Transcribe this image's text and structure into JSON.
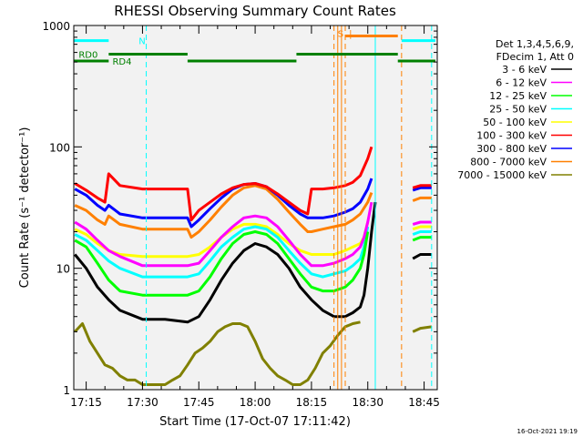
{
  "chart_data": {
    "type": "line",
    "title": "RHESSI Observing Summary Count Rates",
    "xlabel": "Start Time (17-Oct-07 17:11:42)",
    "ylabel": "Count Rate (s⁻¹ detector⁻¹)",
    "yscale": "log",
    "xlim": [
      "17:11:42",
      "18:48:30"
    ],
    "ylim": [
      1,
      1000
    ],
    "x_ticks": [
      "17:15",
      "17:30",
      "17:45",
      "18:00",
      "18:15",
      "18:30",
      "18:45"
    ],
    "y_ticks": [
      "1",
      "10",
      "100",
      "1000"
    ],
    "grid": false,
    "footer": "16-Oct-2021 19:19",
    "legend": {
      "placement": "right",
      "header": [
        "Det 1,3,4,5,6,9,",
        "FDecim 1, Att 0"
      ]
    },
    "series": [
      {
        "name": "3 - 6 keV",
        "color": "#000000",
        "band_low": 3,
        "band_high": 6,
        "x": [
          "17:12",
          "17:15",
          "17:18",
          "17:21",
          "17:24",
          "17:30",
          "17:36",
          "17:42",
          "17:45",
          "17:48",
          "17:51",
          "17:54",
          "17:57",
          "18:00",
          "18:03",
          "18:06",
          "18:09",
          "18:12",
          "18:15",
          "18:18",
          "18:21",
          "18:24",
          "18:26",
          "18:28",
          "18:29",
          "18:30",
          "18:31",
          "18:32",
          "18:40",
          "18:42",
          "18:44",
          "18:47"
        ],
        "y": [
          13,
          10,
          7,
          5.5,
          4.5,
          3.8,
          3.8,
          3.6,
          4,
          5.5,
          8,
          11,
          14,
          16,
          15,
          13,
          10,
          7,
          5.5,
          4.5,
          4,
          4,
          4.3,
          4.8,
          6,
          10,
          20,
          35,
          null,
          12,
          13,
          13
        ]
      },
      {
        "name": "6 - 12 keV",
        "color": "#ff00ff",
        "band_low": 6,
        "band_high": 12,
        "x": [
          "17:12",
          "17:15",
          "17:18",
          "17:21",
          "17:24",
          "17:30",
          "17:36",
          "17:42",
          "17:45",
          "17:48",
          "17:51",
          "17:54",
          "17:57",
          "18:00",
          "18:03",
          "18:06",
          "18:09",
          "18:12",
          "18:15",
          "18:18",
          "18:21",
          "18:24",
          "18:26",
          "18:28",
          "18:29",
          "18:30",
          "18:31",
          "18:32",
          "18:40",
          "18:42",
          "18:44",
          "18:47"
        ],
        "y": [
          24,
          21,
          17,
          14,
          12.5,
          10.5,
          10.5,
          10.5,
          11,
          14,
          18,
          22,
          26,
          27,
          26,
          22,
          17,
          13,
          10.5,
          10.5,
          11,
          12,
          13,
          15,
          18,
          24,
          35,
          null,
          null,
          23,
          24,
          24
        ]
      },
      {
        "name": "12 - 25 keV",
        "color": "#00ff00",
        "band_low": 12,
        "band_high": 25,
        "x": [
          "17:12",
          "17:15",
          "17:18",
          "17:21",
          "17:24",
          "17:30",
          "17:36",
          "17:42",
          "17:45",
          "17:48",
          "17:51",
          "17:54",
          "17:57",
          "18:00",
          "18:03",
          "18:06",
          "18:09",
          "18:12",
          "18:15",
          "18:18",
          "18:21",
          "18:24",
          "18:26",
          "18:28",
          "18:29",
          "18:30",
          "18:31",
          "18:32",
          "18:40",
          "18:42",
          "18:44",
          "18:47"
        ],
        "y": [
          17,
          15,
          11,
          8,
          6.5,
          6,
          6,
          6,
          6.5,
          8.5,
          12,
          16,
          19,
          20,
          19,
          16,
          12,
          9,
          7,
          6.5,
          6.5,
          7,
          8,
          10,
          13,
          20,
          null,
          null,
          null,
          17,
          18,
          18
        ]
      },
      {
        "name": "25 - 50 keV",
        "color": "#00ffff",
        "band_low": 25,
        "band_high": 50,
        "x": [
          "17:12",
          "17:15",
          "17:18",
          "17:21",
          "17:24",
          "17:30",
          "17:36",
          "17:42",
          "17:45",
          "17:48",
          "17:51",
          "17:54",
          "17:57",
          "18:00",
          "18:03",
          "18:06",
          "18:09",
          "18:12",
          "18:15",
          "18:18",
          "18:21",
          "18:24",
          "18:26",
          "18:28",
          "18:29",
          "18:30",
          "18:31",
          "18:32",
          "18:40",
          "18:42",
          "18:44",
          "18:47"
        ],
        "y": [
          19,
          17,
          14,
          11.5,
          10,
          8.5,
          8.5,
          8.5,
          9,
          11.5,
          15,
          18,
          21,
          22,
          21,
          18,
          14,
          11,
          9,
          8.5,
          9,
          9.5,
          10.5,
          12,
          15,
          22,
          null,
          null,
          null,
          19,
          20,
          20
        ]
      },
      {
        "name": "50 - 100 keV",
        "color": "#ffff00",
        "band_low": 50,
        "band_high": 100,
        "x": [
          "17:12",
          "17:15",
          "17:18",
          "17:21",
          "17:24",
          "17:30",
          "17:36",
          "17:42",
          "17:45",
          "17:48",
          "17:51",
          "17:54",
          "17:57",
          "18:00",
          "18:03",
          "18:06",
          "18:09",
          "18:12",
          "18:15",
          "18:18",
          "18:21",
          "18:24",
          "18:26",
          "18:28",
          "18:29",
          "18:30",
          "18:31",
          "18:32",
          "18:40",
          "18:42",
          "18:44",
          "18:47"
        ],
        "y": [
          21,
          19,
          16,
          14,
          13,
          12.5,
          12.5,
          12.5,
          13,
          15,
          18,
          21,
          23,
          23,
          22,
          19,
          16,
          14,
          13,
          13,
          13,
          14,
          15,
          16,
          18,
          24,
          null,
          null,
          null,
          21,
          22,
          22
        ]
      },
      {
        "name": "100 - 300 keV",
        "color": "#ff0000",
        "band_low": 100,
        "band_high": 300,
        "x": [
          "17:12",
          "17:15",
          "17:18",
          "17:20",
          "17:21",
          "17:24",
          "17:30",
          "17:36",
          "17:42",
          "17:43",
          "17:45",
          "17:48",
          "17:51",
          "17:54",
          "17:57",
          "18:00",
          "18:03",
          "18:06",
          "18:09",
          "18:12",
          "18:14",
          "18:15",
          "18:18",
          "18:21",
          "18:24",
          "18:26",
          "18:28",
          "18:30",
          "18:31",
          "18:32",
          "18:40",
          "18:42",
          "18:44",
          "18:47"
        ],
        "y": [
          50,
          44,
          38,
          35,
          60,
          48,
          45,
          45,
          45,
          25,
          30,
          35,
          41,
          46,
          49,
          50,
          47,
          41,
          35,
          30,
          28,
          45,
          45,
          46,
          48,
          51,
          58,
          80,
          100,
          null,
          null,
          46,
          48,
          48
        ]
      },
      {
        "name": "300 - 800 keV",
        "color": "#0000ff",
        "band_low": 300,
        "band_high": 800,
        "x": [
          "17:12",
          "17:15",
          "17:18",
          "17:20",
          "17:21",
          "17:24",
          "17:30",
          "17:36",
          "17:42",
          "17:43",
          "17:45",
          "17:48",
          "17:51",
          "17:54",
          "17:57",
          "18:00",
          "18:03",
          "18:06",
          "18:09",
          "18:12",
          "18:14",
          "18:15",
          "18:18",
          "18:21",
          "18:24",
          "18:26",
          "18:28",
          "18:30",
          "18:31",
          "18:32",
          "18:40",
          "18:42",
          "18:44",
          "18:47"
        ],
        "y": [
          45,
          40,
          33,
          30,
          33,
          28,
          26,
          26,
          26,
          22,
          25,
          31,
          38,
          45,
          49,
          50,
          47,
          40,
          33,
          28,
          26,
          26,
          26,
          27,
          29,
          31,
          35,
          45,
          55,
          null,
          null,
          44,
          46,
          46
        ]
      },
      {
        "name": "800 - 7000 keV",
        "color": "#ff8000",
        "band_low": 800,
        "band_high": 7000,
        "x": [
          "17:12",
          "17:15",
          "17:18",
          "17:20",
          "17:21",
          "17:24",
          "17:30",
          "17:36",
          "17:42",
          "17:43",
          "17:45",
          "17:48",
          "17:51",
          "17:54",
          "17:57",
          "18:00",
          "18:03",
          "18:06",
          "18:09",
          "18:12",
          "18:14",
          "18:15",
          "18:18",
          "18:21",
          "18:24",
          "18:26",
          "18:28",
          "18:30",
          "18:31",
          "18:32",
          "18:40",
          "18:42",
          "18:44",
          "18:47"
        ],
        "y": [
          33,
          30,
          25,
          23,
          27,
          23,
          21,
          21,
          21,
          18,
          20,
          25,
          32,
          40,
          46,
          48,
          45,
          37,
          29,
          23,
          20,
          20,
          21,
          22,
          23,
          25,
          28,
          35,
          42,
          null,
          null,
          36,
          38,
          38
        ]
      },
      {
        "name": "7000 - 15000 keV",
        "color": "#808000",
        "band_low": 7000,
        "band_high": 15000,
        "x": [
          "17:12",
          "17:14",
          "17:16",
          "17:18",
          "17:20",
          "17:22",
          "17:24",
          "17:26",
          "17:28",
          "17:30",
          "17:32",
          "17:34",
          "17:36",
          "17:38",
          "17:40",
          "17:42",
          "17:44",
          "17:46",
          "17:48",
          "17:50",
          "17:52",
          "17:54",
          "17:56",
          "17:58",
          "18:00",
          "18:02",
          "18:04",
          "18:06",
          "18:08",
          "18:10",
          "18:12",
          "18:14",
          "18:16",
          "18:18",
          "18:20",
          "18:22",
          "18:24",
          "18:26",
          "18:28",
          "18:30",
          "18:32",
          "18:40",
          "18:42",
          "18:44",
          "18:47"
        ],
        "y": [
          3,
          3.5,
          2.5,
          2,
          1.6,
          1.5,
          1.3,
          1.2,
          1.2,
          1.1,
          1.1,
          1.1,
          1.1,
          1.2,
          1.3,
          1.6,
          2,
          2.2,
          2.5,
          3,
          3.3,
          3.5,
          3.5,
          3.3,
          2.5,
          1.8,
          1.5,
          1.3,
          1.2,
          1.1,
          1.1,
          1.2,
          1.5,
          2,
          2.3,
          2.8,
          3.3,
          3.5,
          3.6,
          null,
          null,
          null,
          3,
          3.2,
          3.3
        ]
      }
    ],
    "annotations": {
      "labels": [
        {
          "text": "N",
          "color": "#00ffff"
        },
        {
          "text": "RD0",
          "color": "#008000"
        },
        {
          "text": "RD4",
          "color": "#008000"
        },
        {
          "text": "S",
          "color": "#ff8000"
        },
        {
          "text": "|",
          "color": "#ff8000"
        }
      ],
      "flag_bars": [
        {
          "name": "night",
          "color": "#00ffff",
          "value": 750,
          "segments": [
            [
              "17:11:42",
              "17:21"
            ],
            [
              "18:39",
              "18:48"
            ]
          ]
        },
        {
          "name": "saa",
          "color": "#ff8000",
          "value": 820,
          "segments": [
            [
              "18:24",
              "18:38"
            ]
          ]
        },
        {
          "name": "decimation-upper",
          "color": "#008000",
          "value": 580,
          "segments": [
            [
              "17:21",
              "17:42"
            ],
            [
              "18:11",
              "18:38"
            ]
          ]
        },
        {
          "name": "decimation-lower",
          "color": "#008000",
          "value": 510,
          "segments": [
            [
              "17:11:42",
              "17:21"
            ],
            [
              "17:42",
              "18:11"
            ],
            [
              "18:38",
              "18:48"
            ]
          ]
        }
      ],
      "vlines": [
        {
          "t": "17:31",
          "color": "#00ffff",
          "style": "dash"
        },
        {
          "t": "18:21",
          "color": "#ff8000",
          "style": "dash"
        },
        {
          "t": "18:22",
          "color": "#ff8000",
          "style": "solid"
        },
        {
          "t": "18:23",
          "color": "#ff8000",
          "style": "solid"
        },
        {
          "t": "18:24",
          "color": "#ff8000",
          "style": "dash"
        },
        {
          "t": "18:32",
          "color": "#00ffff",
          "style": "solid"
        },
        {
          "t": "18:39",
          "color": "#ff8000",
          "style": "dash"
        },
        {
          "t": "18:47",
          "color": "#00ffff",
          "style": "dash"
        }
      ]
    }
  }
}
